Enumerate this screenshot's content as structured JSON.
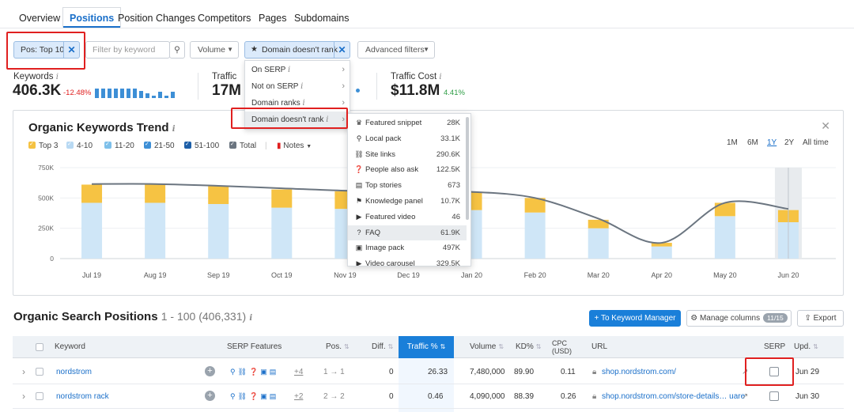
{
  "tabs": [
    "Overview",
    "Positions",
    "Position Changes",
    "Competitors",
    "Pages",
    "Subdomains"
  ],
  "filters": {
    "pos_chip": "Pos: Top 10",
    "keyword_placeholder": "Filter by keyword",
    "volume": "Volume",
    "domain_chip": "Domain doesn't rank",
    "advanced": "Advanced filters"
  },
  "kpis": {
    "keywords_label": "Keywords",
    "keywords_value": "406.3K",
    "keywords_delta": "-12.48%",
    "traffic_label": "Traffic",
    "traffic_value": "17M",
    "cost_label": "Traffic Cost",
    "cost_value": "$11.8M",
    "cost_delta": "4.41%"
  },
  "menu_main": [
    {
      "label": "On SERP"
    },
    {
      "label": "Not on SERP"
    },
    {
      "label": "Domain ranks"
    },
    {
      "label": "Domain doesn't rank"
    }
  ],
  "menu_features": [
    {
      "icon": "crown-icon",
      "glyph": "♛",
      "label": "Featured snippet",
      "count": "28K"
    },
    {
      "icon": "pin-icon",
      "glyph": "⚲",
      "label": "Local pack",
      "count": "33.1K"
    },
    {
      "icon": "link-icon",
      "glyph": "⛓",
      "label": "Site links",
      "count": "290.6K"
    },
    {
      "icon": "question-icon",
      "glyph": "❓",
      "label": "People also ask",
      "count": "122.5K"
    },
    {
      "icon": "news-icon",
      "glyph": "▤",
      "label": "Top stories",
      "count": "673"
    },
    {
      "icon": "graduation-cap-icon",
      "glyph": "⚑",
      "label": "Knowledge panel",
      "count": "10.7K"
    },
    {
      "icon": "video-icon",
      "glyph": "▶",
      "label": "Featured video",
      "count": "46"
    },
    {
      "icon": "faq-icon",
      "glyph": "?",
      "label": "FAQ",
      "count": "61.9K"
    },
    {
      "icon": "image-icon",
      "glyph": "▣",
      "label": "Image pack",
      "count": "497K"
    },
    {
      "icon": "video-carousel-icon",
      "glyph": "▶",
      "label": "Video carousel",
      "count": "329.5K"
    }
  ],
  "chart_card": {
    "title": "Organic Keywords Trend",
    "legend": [
      {
        "label": "Top 3",
        "color": "#f5c242"
      },
      {
        "label": "4-10",
        "color": "#b8d9f3"
      },
      {
        "label": "11-20",
        "color": "#7ec0ea"
      },
      {
        "label": "21-50",
        "color": "#3d8fd6"
      },
      {
        "label": "51-100",
        "color": "#1d5fa8"
      },
      {
        "label": "Total",
        "color": "#6b7580"
      }
    ],
    "notes": "Notes",
    "ranges": [
      "1M",
      "6M",
      "1Y",
      "2Y",
      "All time"
    ],
    "active_range": "1Y"
  },
  "chart_data": {
    "type": "bar",
    "categories": [
      "Jul 19",
      "Aug 19",
      "Sep 19",
      "Oct 19",
      "Nov 19",
      "Dec 19",
      "Jan 20",
      "Feb 20",
      "Mar 20",
      "Apr 20",
      "May 20",
      "Jun 20"
    ],
    "series": [
      {
        "name": "4-10",
        "values": [
          460000,
          460000,
          450000,
          420000,
          410000,
          400000,
          400000,
          380000,
          250000,
          100000,
          350000,
          300000
        ]
      },
      {
        "name": "Top 3",
        "values": [
          150000,
          155000,
          150000,
          150000,
          145000,
          145000,
          145000,
          120000,
          70000,
          30000,
          110000,
          100000
        ]
      },
      {
        "name": "Total",
        "values": [
          615000,
          615000,
          600000,
          580000,
          560000,
          550000,
          550000,
          500000,
          330000,
          130000,
          460000,
          410000
        ]
      }
    ],
    "yticks": [
      "750K",
      "500K",
      "250K",
      "0"
    ],
    "ylim": [
      0,
      750000
    ]
  },
  "positions": {
    "title": "Organic Search Positions",
    "subtitle": "1 - 100 (406,331)",
    "keyword_manager": "+ To Keyword Manager",
    "manage_columns": "Manage columns",
    "manage_badge": "11/15",
    "export": "Export",
    "columns": [
      "Keyword",
      "SERP Features",
      "Pos.",
      "Diff.",
      "Traffic %",
      "Volume",
      "KD%",
      "CPC (USD)",
      "URL",
      "SERP",
      "Upd."
    ],
    "rows": [
      {
        "keyword": "nordstrom",
        "more": "+4",
        "pos": "1 → 1",
        "diff": "0",
        "traffic": "26.33",
        "volume": "7,480,000",
        "kd": "89.90",
        "cpc": "0.11",
        "url": "shop.nordstrom.com/",
        "upd": "Jun 29"
      },
      {
        "keyword": "nordstrom rack",
        "more": "+2",
        "pos": "2 → 2",
        "diff": "0",
        "traffic": "0.46",
        "volume": "4,090,000",
        "kd": "88.39",
        "cpc": "0.26",
        "url": "shop.nordstrom.com/store-details… uare",
        "upd": "Jun 30"
      }
    ]
  }
}
